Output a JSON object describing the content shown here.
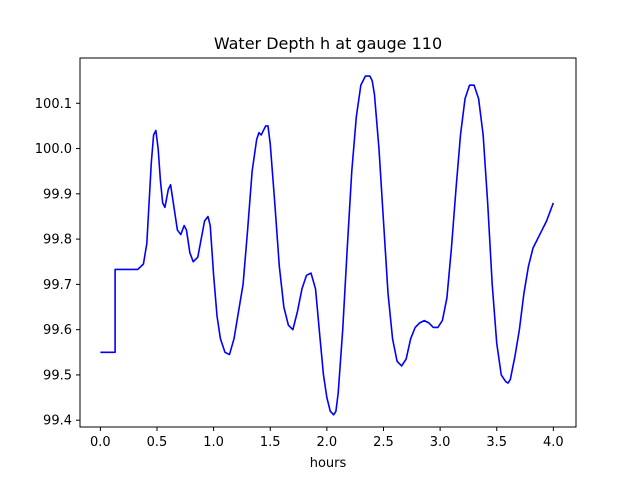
{
  "chart_data": {
    "type": "line",
    "title": "Water Depth h at gauge 110",
    "xlabel": "hours",
    "ylabel": "",
    "xlim": [
      -0.18,
      4.2
    ],
    "ylim": [
      99.385,
      100.2
    ],
    "xticks": [
      0.0,
      0.5,
      1.0,
      1.5,
      2.0,
      2.5,
      3.0,
      3.5,
      4.0
    ],
    "xtick_labels": [
      "0.0",
      "0.5",
      "1.0",
      "1.5",
      "2.0",
      "2.5",
      "3.0",
      "3.5",
      "4.0"
    ],
    "yticks": [
      99.4,
      99.5,
      99.6,
      99.7,
      99.8,
      99.9,
      100.0,
      100.1
    ],
    "ytick_labels": [
      "99.4",
      "99.5",
      "99.6",
      "99.7",
      "99.8",
      "99.9",
      "100.0",
      "100.1"
    ],
    "grid": false,
    "series": [
      {
        "color": "#0000ff",
        "x": [
          0.0,
          0.13,
          0.13,
          0.25,
          0.33,
          0.38,
          0.41,
          0.43,
          0.45,
          0.47,
          0.49,
          0.51,
          0.53,
          0.55,
          0.57,
          0.6,
          0.62,
          0.65,
          0.68,
          0.71,
          0.74,
          0.76,
          0.79,
          0.82,
          0.86,
          0.89,
          0.92,
          0.95,
          0.97,
          1.0,
          1.03,
          1.06,
          1.1,
          1.14,
          1.18,
          1.22,
          1.26,
          1.3,
          1.34,
          1.38,
          1.4,
          1.42,
          1.44,
          1.46,
          1.48,
          1.5,
          1.54,
          1.58,
          1.62,
          1.66,
          1.7,
          1.74,
          1.78,
          1.82,
          1.86,
          1.9,
          1.94,
          1.97,
          2.0,
          2.03,
          2.06,
          2.08,
          2.1,
          2.14,
          2.18,
          2.22,
          2.26,
          2.3,
          2.34,
          2.38,
          2.4,
          2.42,
          2.46,
          2.5,
          2.54,
          2.58,
          2.62,
          2.66,
          2.7,
          2.74,
          2.78,
          2.82,
          2.86,
          2.9,
          2.94,
          2.98,
          3.02,
          3.06,
          3.1,
          3.14,
          3.18,
          3.22,
          3.26,
          3.3,
          3.34,
          3.38,
          3.42,
          3.46,
          3.5,
          3.54,
          3.58,
          3.6,
          3.62,
          3.66,
          3.7,
          3.74,
          3.78,
          3.82,
          3.86,
          3.9,
          3.94,
          3.97,
          4.0
        ],
        "y": [
          99.55,
          99.55,
          99.733,
          99.733,
          99.733,
          99.745,
          99.79,
          99.88,
          99.97,
          100.03,
          100.04,
          100.0,
          99.93,
          99.88,
          99.87,
          99.91,
          99.92,
          99.87,
          99.82,
          99.81,
          99.83,
          99.82,
          99.77,
          99.75,
          99.76,
          99.8,
          99.84,
          99.85,
          99.83,
          99.72,
          99.63,
          99.58,
          99.55,
          99.545,
          99.58,
          99.64,
          99.7,
          99.82,
          99.95,
          100.02,
          100.035,
          100.03,
          100.04,
          100.05,
          100.05,
          100.01,
          99.88,
          99.74,
          99.65,
          99.61,
          99.6,
          99.64,
          99.69,
          99.72,
          99.725,
          99.69,
          99.58,
          99.5,
          99.45,
          99.42,
          99.412,
          99.42,
          99.46,
          99.6,
          99.78,
          99.95,
          100.07,
          100.14,
          100.16,
          100.16,
          100.15,
          100.12,
          100.0,
          99.84,
          99.68,
          99.58,
          99.53,
          99.52,
          99.535,
          99.58,
          99.605,
          99.615,
          99.62,
          99.615,
          99.605,
          99.605,
          99.62,
          99.67,
          99.78,
          99.91,
          100.03,
          100.11,
          100.14,
          100.14,
          100.11,
          100.03,
          99.88,
          99.7,
          99.57,
          99.5,
          99.485,
          99.482,
          99.49,
          99.54,
          99.6,
          99.68,
          99.74,
          99.78,
          99.8,
          99.82,
          99.84,
          99.86,
          99.88
        ]
      }
    ]
  }
}
